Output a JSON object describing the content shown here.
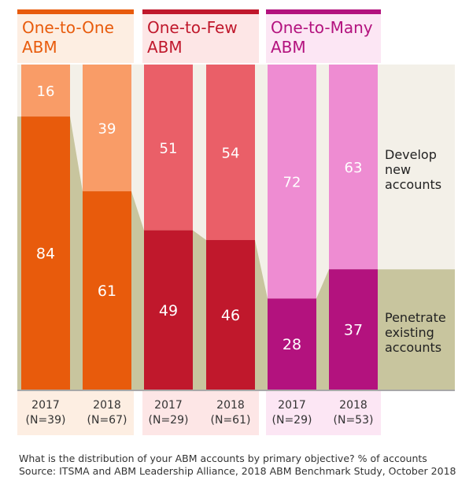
{
  "chart_data": {
    "type": "bar",
    "stacked": true,
    "normalized_percent": true,
    "groups": [
      {
        "title_line1": "One-to-One",
        "title_line2": "ABM",
        "colors": {
          "header": "#e85b0c",
          "title": "#e85b0c",
          "panel": "#fdeee2",
          "top": "#f99c67",
          "bottom": "#e85b0c"
        },
        "bars": [
          {
            "year": "2017",
            "n": "(N=39)",
            "develop": 16,
            "penetrate": 84
          },
          {
            "year": "2018",
            "n": "(N=67)",
            "develop": 39,
            "penetrate": 61
          }
        ]
      },
      {
        "title_line1": "One-to-Few",
        "title_line2": "ABM",
        "colors": {
          "header": "#c0182c",
          "title": "#c0182c",
          "panel": "#fde6e6",
          "top": "#ea5f68",
          "bottom": "#c0182c"
        },
        "bars": [
          {
            "year": "2017",
            "n": "(N=29)",
            "develop": 51,
            "penetrate": 49
          },
          {
            "year": "2018",
            "n": "(N=61)",
            "develop": 54,
            "penetrate": 46
          }
        ]
      },
      {
        "title_line1": "One-to-Many",
        "title_line2": "ABM",
        "colors": {
          "header": "#b3127e",
          "title": "#b3127e",
          "panel": "#fce6f4",
          "top": "#ee8cd2",
          "bottom": "#b3127e"
        },
        "bars": [
          {
            "year": "2017",
            "n": "(N=29)",
            "develop": 72,
            "penetrate": 28
          },
          {
            "year": "2018",
            "n": "(N=53)",
            "develop": 63,
            "penetrate": 37
          }
        ]
      }
    ],
    "legend": {
      "develop": [
        "Develop",
        "new",
        "accounts"
      ],
      "penetrate": [
        "Penetrate",
        "existing",
        "accounts"
      ]
    },
    "band_colors": {
      "develop": "#f3f0e8",
      "penetrate": "#c8c59e"
    },
    "value_label_color": "#ffffff",
    "ylim": [
      0,
      100
    ]
  },
  "caption": {
    "question": "What is the distribution of your ABM accounts by primary objective? % of accounts",
    "source": "Source: ITSMA and ABM Leadership Alliance, 2018 ABM Benchmark Study, October 2018"
  }
}
